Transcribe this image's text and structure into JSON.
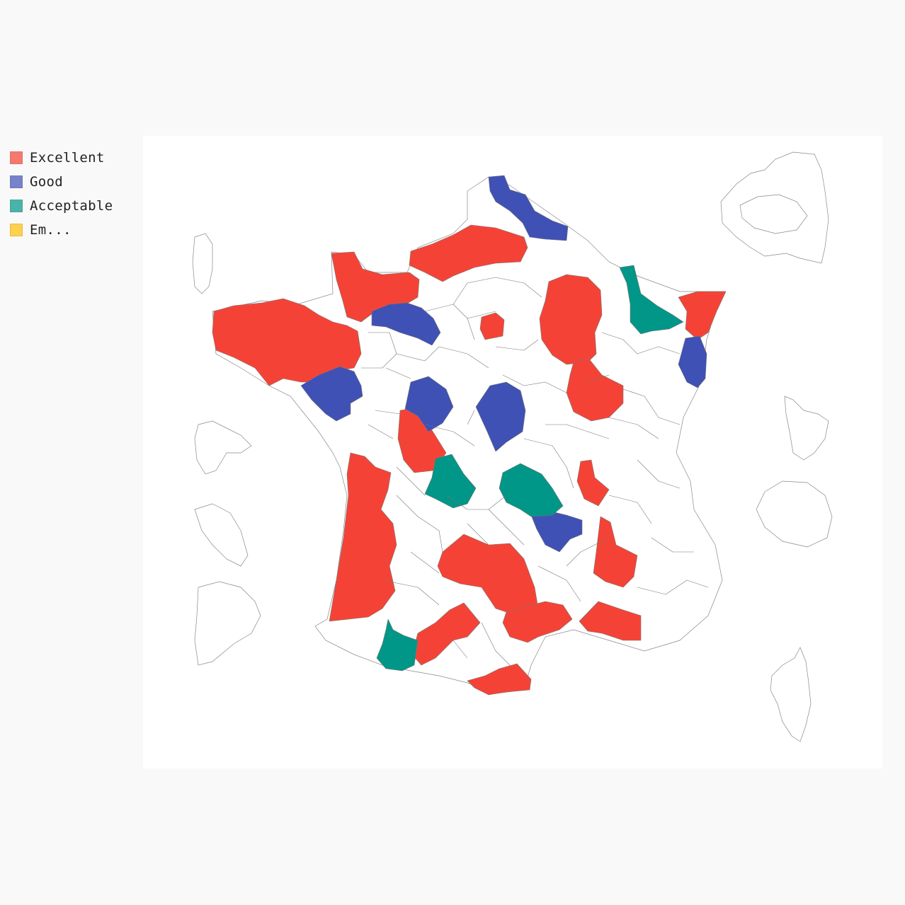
{
  "legend": {
    "items": [
      {
        "label": "Excellent",
        "color": "#f44336"
      },
      {
        "label": "Good",
        "color": "#3f51b5"
      },
      {
        "label": "Acceptable",
        "color": "#009688"
      },
      {
        "label": "Em...",
        "color": "#ffc107"
      }
    ]
  },
  "map": {
    "empty_fill": "#ffffff"
  }
}
